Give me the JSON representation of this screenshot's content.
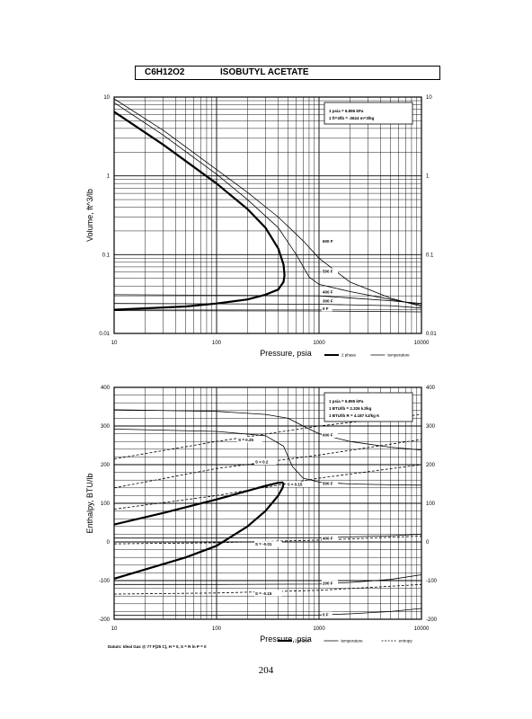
{
  "page": {
    "formula": "C6H12O2",
    "compound": "ISOBUTYL ACETATE",
    "page_number": "204",
    "datum_note": "Datum: Ideal Gas @ 77 F(25 C), H = 0, S = R ln P = 0"
  },
  "colors": {
    "ink": "#000000",
    "paper": "#ffffff"
  },
  "chart_data": [
    {
      "type": "line",
      "xlabel": "Pressure, psia",
      "ylabel": "Volume, ft^3/lb",
      "x_scale": "log",
      "y_scale": "log",
      "xlim": [
        10,
        10000
      ],
      "ylim": [
        0.01,
        10
      ],
      "x_ticks": [
        10,
        100,
        1000,
        10000
      ],
      "x_tick_labels": [
        "10",
        "100",
        "1000",
        "10000"
      ],
      "y_ticks": [
        0.01,
        0.1,
        1,
        10
      ],
      "y_tick_labels": [
        "0.01",
        "0.1",
        "1",
        "10"
      ],
      "grid": true,
      "conversion_box": [
        "1 psia = 6.895 kPa",
        "1 ft^3/lb = .0624 m^3/kg"
      ],
      "legend": {
        "placement": "bottom-right",
        "entries": [
          "2 phase",
          "temperature"
        ]
      },
      "series": [
        {
          "name": "2 phase",
          "style": "thick",
          "x": [
            10,
            30,
            100,
            200,
            300,
            400,
            450,
            460,
            450,
            400,
            300,
            200,
            100,
            50,
            10
          ],
          "y": [
            6.5,
            2.5,
            0.8,
            0.38,
            0.22,
            0.12,
            0.075,
            0.055,
            0.045,
            0.036,
            0.031,
            0.027,
            0.024,
            0.022,
            0.02
          ]
        },
        {
          "label": "600 F",
          "style": "thin",
          "x": [
            10,
            30,
            100,
            200,
            400,
            700,
            1000,
            2000,
            5000,
            10000
          ],
          "y": [
            9.5,
            3.8,
            1.2,
            0.62,
            0.3,
            0.15,
            0.09,
            0.045,
            0.028,
            0.022
          ]
        },
        {
          "label": "500 F",
          "style": "thin",
          "x": [
            10,
            30,
            100,
            200,
            400,
            600,
            800,
            1000,
            2000,
            5000,
            10000
          ],
          "y": [
            8.5,
            3.3,
            1.05,
            0.5,
            0.22,
            0.1,
            0.052,
            0.042,
            0.034,
            0.027,
            0.023
          ]
        },
        {
          "label": "400 F",
          "style": "thin",
          "x": [
            10,
            1000,
            5000,
            10000
          ],
          "y": [
            0.031,
            0.03,
            0.026,
            0.024
          ]
        },
        {
          "label": "300 F",
          "style": "thin",
          "x": [
            10,
            1000,
            5000,
            10000
          ],
          "y": [
            0.024,
            0.0235,
            0.0225,
            0.021
          ]
        },
        {
          "label": "0 F",
          "style": "thin",
          "x": [
            10,
            1000,
            10000
          ],
          "y": [
            0.0195,
            0.0193,
            0.0188
          ]
        }
      ],
      "annotations": [
        {
          "text": "600 F",
          "x": 1000,
          "y": 0.15
        },
        {
          "text": "500 F",
          "x": 1000,
          "y": 0.062
        },
        {
          "text": "400 F",
          "x": 1000,
          "y": 0.034
        },
        {
          "text": "300 F",
          "x": 1000,
          "y": 0.026
        },
        {
          "text": "0 F",
          "x": 1000,
          "y": 0.021
        }
      ]
    },
    {
      "type": "line",
      "xlabel": "Pressure, psia",
      "ylabel": "Enthalpy, BTU/lb",
      "x_scale": "log",
      "y_scale": "linear",
      "xlim": [
        10,
        10000
      ],
      "ylim": [
        -200,
        400
      ],
      "x_ticks": [
        10,
        100,
        1000,
        10000
      ],
      "x_tick_labels": [
        "10",
        "100",
        "1000",
        "10000"
      ],
      "y_ticks": [
        -200,
        -100,
        0,
        100,
        200,
        300,
        400
      ],
      "y_tick_labels": [
        "-200",
        "-100",
        "0",
        "100",
        "200",
        "300",
        "400"
      ],
      "grid": true,
      "conversion_box": [
        "1 psia = 6.895 kPa",
        "1 BTU/lb = 2.326 kJ/kg",
        "1 BTU/lb R = 4.187 kJ/kg K"
      ],
      "legend": {
        "placement": "bottom-right",
        "entries": [
          "2 phase",
          "temperature",
          "entropy"
        ]
      },
      "series": [
        {
          "name": "2 phase",
          "style": "thick",
          "x": [
            10,
            30,
            100,
            200,
            300,
            400,
            440,
            450,
            440,
            400,
            300,
            200,
            100,
            50,
            10
          ],
          "y": [
            45,
            75,
            110,
            132,
            145,
            153,
            154,
            150,
            140,
            120,
            80,
            40,
            -10,
            -40,
            -95
          ]
        },
        {
          "label": "600 F",
          "style": "thin",
          "x": [
            10,
            100,
            300,
            500,
            700,
            1000,
            2000,
            5000,
            10000
          ],
          "y": [
            342,
            338,
            330,
            320,
            300,
            280,
            260,
            245,
            238
          ]
        },
        {
          "label": "500 F",
          "style": "thin",
          "x": [
            10,
            100,
            300,
            450,
            550,
            700,
            1000,
            2000,
            5000,
            10000
          ],
          "y": [
            292,
            286,
            275,
            248,
            195,
            165,
            155,
            150,
            148,
            147
          ]
        },
        {
          "label": "400 F",
          "style": "thin",
          "x": [
            10,
            100,
            1000,
            2000,
            5000,
            10000
          ],
          "y": [
            10,
            10,
            11,
            13,
            16,
            20
          ]
        },
        {
          "label": "200 F",
          "style": "thin",
          "x": [
            10,
            100,
            1000,
            2000,
            5000,
            10000
          ],
          "y": [
            -110,
            -110,
            -109,
            -105,
            -97,
            -85
          ]
        },
        {
          "label": "0 F",
          "style": "thin",
          "x": [
            10,
            100,
            1000,
            2000,
            5000,
            10000
          ],
          "y": [
            -190,
            -190,
            -189,
            -186,
            -180,
            -172
          ]
        },
        {
          "label": "S = 0.25",
          "style": "dashed",
          "x": [
            10,
            100,
            1000,
            10000
          ],
          "y": [
            215,
            260,
            300,
            330
          ]
        },
        {
          "label": "S = 0.2",
          "style": "dashed",
          "x": [
            10,
            100,
            1000,
            10000
          ],
          "y": [
            140,
            190,
            225,
            265
          ]
        },
        {
          "label": "S = 0.15",
          "style": "dashed",
          "x": [
            10,
            100,
            1000,
            10000
          ],
          "y": [
            85,
            120,
            165,
            200
          ]
        },
        {
          "label": "S = -0.01",
          "style": "dashed",
          "x": [
            10,
            100,
            1000,
            10000
          ],
          "y": [
            -5,
            -2,
            5,
            15
          ]
        },
        {
          "label": "S = -0.15",
          "style": "dashed",
          "x": [
            10,
            100,
            1000,
            10000
          ],
          "y": [
            -135,
            -132,
            -125,
            -110
          ]
        }
      ],
      "annotations": [
        {
          "text": "S = 0.25",
          "x": 150,
          "y": 265
        },
        {
          "text": "600 F",
          "x": 1000,
          "y": 278
        },
        {
          "text": "S = 0.2",
          "x": 220,
          "y": 208
        },
        {
          "text": "500 F",
          "x": 1000,
          "y": 152
        },
        {
          "text": "S = 0.15",
          "x": 450,
          "y": 150
        },
        {
          "text": "400 F",
          "x": 1000,
          "y": 10
        },
        {
          "text": "S = -0.01",
          "x": 220,
          "y": -5
        },
        {
          "text": "200 F",
          "x": 1000,
          "y": -106
        },
        {
          "text": "S = -0.15",
          "x": 220,
          "y": -132
        },
        {
          "text": "0 F",
          "x": 1000,
          "y": -187
        }
      ]
    }
  ]
}
